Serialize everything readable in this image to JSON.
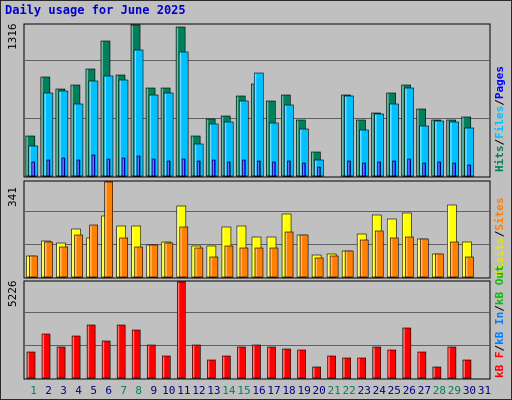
{
  "title": "Daily usage for June 2025",
  "colors": {
    "hits": "#00805c",
    "files": "#00c0ff",
    "pages": "#0000ff",
    "visits": "#ffff00",
    "sites": "#ff8000",
    "kbin": "#0080ff",
    "kbout": "#00c000",
    "kbf": "#ff0000",
    "weekend_day": "#00805c",
    "weekday": "#000080",
    "legend_sep": "#000000"
  },
  "legends": {
    "top": [
      {
        "text": "Hits",
        "color_key": "hits"
      },
      {
        "text": "/",
        "color_key": "legend_sep"
      },
      {
        "text": "Files",
        "color_key": "files"
      },
      {
        "text": "/",
        "color_key": "legend_sep"
      },
      {
        "text": "Pages",
        "color_key": "pages"
      }
    ],
    "middle": [
      {
        "text": "Visits",
        "color_key": "visits"
      },
      {
        "text": "/",
        "color_key": "legend_sep"
      },
      {
        "text": "Sites",
        "color_key": "sites"
      }
    ],
    "bottom": [
      {
        "text": "kB F",
        "color_key": "kbf"
      },
      {
        "text": "/",
        "color_key": "legend_sep"
      },
      {
        "text": "kB In",
        "color_key": "kbin"
      },
      {
        "text": "/",
        "color_key": "legend_sep"
      },
      {
        "text": "kB Out",
        "color_key": "kbout"
      }
    ]
  },
  "chart_data": [
    {
      "type": "bar",
      "panel": "hits-files-pages",
      "ymax_label": "1316",
      "ylim": [
        0,
        1316
      ],
      "categories": [
        "1",
        "2",
        "3",
        "4",
        "5",
        "6",
        "7",
        "8",
        "9",
        "10",
        "11",
        "12",
        "13",
        "14",
        "15",
        "16",
        "17",
        "18",
        "19",
        "20",
        "21",
        "22",
        "23",
        "24",
        "25",
        "26",
        "27",
        "28",
        "29",
        "30",
        "31"
      ],
      "weekend_days": [
        "1",
        "7",
        "8",
        "14",
        "15",
        "21",
        "22",
        "28",
        "29"
      ],
      "series": [
        {
          "key": "hits",
          "values": [
            350,
            860,
            760,
            790,
            930,
            1180,
            880,
            1320,
            770,
            770,
            1300,
            350,
            500,
            520,
            700,
            800,
            650,
            710,
            490,
            210,
            0,
            710,
            490,
            550,
            720,
            790,
            580,
            490,
            490,
            510,
            0
          ]
        },
        {
          "key": "files",
          "values": [
            260,
            720,
            740,
            630,
            830,
            870,
            840,
            1100,
            710,
            720,
            1080,
            280,
            450,
            470,
            650,
            900,
            460,
            620,
            410,
            140,
            0,
            700,
            400,
            540,
            630,
            770,
            440,
            480,
            470,
            420,
            0
          ]
        },
        {
          "key": "pages",
          "values": [
            120,
            140,
            160,
            140,
            180,
            150,
            160,
            170,
            150,
            130,
            150,
            130,
            140,
            120,
            140,
            130,
            120,
            130,
            110,
            80,
            0,
            130,
            110,
            120,
            130,
            150,
            110,
            120,
            110,
            100,
            0
          ]
        }
      ]
    },
    {
      "type": "bar",
      "panel": "visits-sites",
      "ymax_label": "341",
      "ylim": [
        0,
        341
      ],
      "categories": [
        "1",
        "2",
        "3",
        "4",
        "5",
        "6",
        "7",
        "8",
        "9",
        "10",
        "11",
        "12",
        "13",
        "14",
        "15",
        "16",
        "17",
        "18",
        "19",
        "20",
        "21",
        "22",
        "23",
        "24",
        "25",
        "26",
        "27",
        "28",
        "29",
        "30",
        "31"
      ],
      "series": [
        {
          "key": "visits",
          "values": [
            77,
            128,
            121,
            171,
            139,
            219,
            184,
            182,
            114,
            127,
            254,
            110,
            112,
            180,
            182,
            145,
            142,
            226,
            152,
            80,
            84,
            95,
            153,
            224,
            208,
            231,
            136,
            83,
            258,
            124,
            0
          ]
        },
        {
          "key": "sites",
          "values": [
            77,
            124,
            106,
            150,
            186,
            341,
            141,
            107,
            114,
            121,
            180,
            104,
            70,
            110,
            104,
            104,
            104,
            163,
            152,
            67,
            75,
            95,
            134,
            164,
            141,
            142,
            136,
            83,
            125,
            70,
            0
          ]
        }
      ]
    },
    {
      "type": "bar",
      "panel": "kbytes",
      "ymax_label": "5226",
      "ylim": [
        0,
        5226
      ],
      "categories": [
        "1",
        "2",
        "3",
        "4",
        "5",
        "6",
        "7",
        "8",
        "9",
        "10",
        "11",
        "12",
        "13",
        "14",
        "15",
        "16",
        "17",
        "18",
        "19",
        "20",
        "21",
        "22",
        "23",
        "24",
        "25",
        "26",
        "27",
        "28",
        "29",
        "30",
        "31"
      ],
      "series": [
        {
          "key": "kbf",
          "values": [
            1400,
            2400,
            1700,
            2300,
            2900,
            2000,
            2900,
            2600,
            1800,
            1200,
            5226,
            1800,
            1000,
            1200,
            1700,
            1800,
            1700,
            1600,
            1500,
            600,
            1200,
            1100,
            1100,
            1700,
            1500,
            2700,
            1400,
            600,
            1700,
            1000,
            0
          ]
        }
      ]
    }
  ]
}
